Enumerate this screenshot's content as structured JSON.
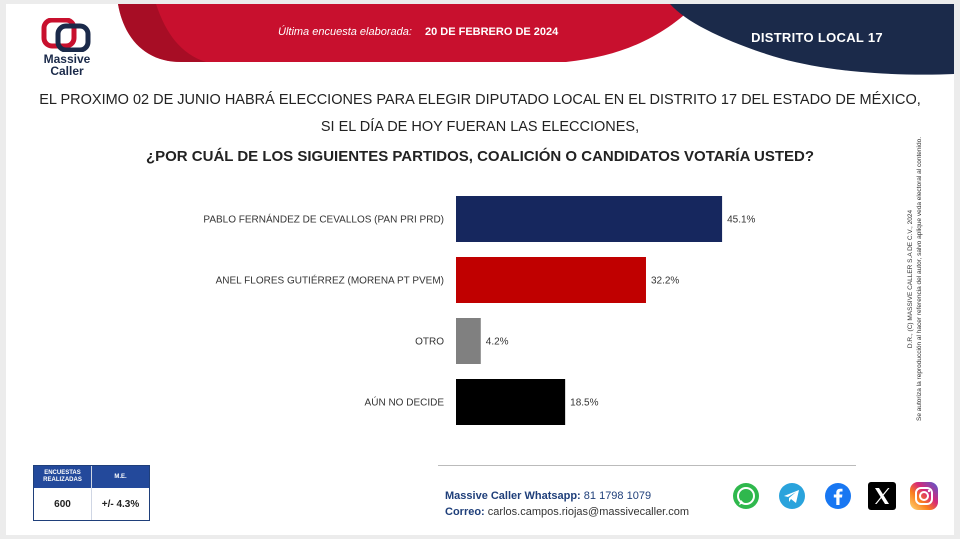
{
  "header": {
    "logo_line1": "Massive",
    "logo_line2": "Caller",
    "survey_label": "Última encuesta elaborada:",
    "survey_date": "20 DE FEBRERO DE 2024",
    "district": "DISTRITO LOCAL 17",
    "colors": {
      "red": "#c8102e",
      "navy": "#1b2a4a"
    }
  },
  "question": {
    "line1": "EL PROXIMO 02 DE JUNIO HABRÁ ELECCIONES PARA ELEGIR DIPUTADO LOCAL EN EL DISTRITO 17 DEL ESTADO DE MÉXICO,",
    "line2": "SI EL DÍA DE HOY FUERAN LAS ELECCIONES,",
    "line3": "¿POR CUÁL DE LOS SIGUIENTES PARTIDOS, COALICIÓN O CANDIDATOS  VOTARÍA USTED?"
  },
  "chart_data": {
    "type": "bar",
    "orientation": "horizontal",
    "categories": [
      "PABLO FERNÁNDEZ DE CEVALLOS (PAN PRI PRD)",
      "ANEL FLORES GUTIÉRREZ (MORENA PT PVEM)",
      "OTRO",
      "AÚN NO DECIDE"
    ],
    "values": [
      45.1,
      32.2,
      4.2,
      18.5
    ],
    "value_labels": [
      "45.1%",
      "32.2%",
      "4.2%",
      "18.5%"
    ],
    "colors": [
      "#16275e",
      "#c00000",
      "#808080",
      "#000000"
    ],
    "xlim": [
      0,
      50
    ],
    "grid": false,
    "legend": "none"
  },
  "side_note": {
    "line1": "D.R., (C) MASSIVE CALLER S.A DE C.V., 2024",
    "line2": "Se autoriza la reproducción al hacer referencia del autor, salvo aplique veda electoral al contenido."
  },
  "sample": {
    "col1_header_line1": "ENCUESTAS",
    "col1_header_line2": "REALIZADAS",
    "col2_header": "M.E.",
    "count": "600",
    "margin": "+/- 4.3%"
  },
  "contact": {
    "whatsapp_label": "Massive Caller Whatsapp:",
    "whatsapp_number": "81 1798 1079",
    "email_label": "Correo:",
    "email": "carlos.campos.riojas@massivecaller.com"
  },
  "socials": [
    "whatsapp-icon",
    "telegram-icon",
    "facebook-icon",
    "x-icon",
    "instagram-icon"
  ]
}
